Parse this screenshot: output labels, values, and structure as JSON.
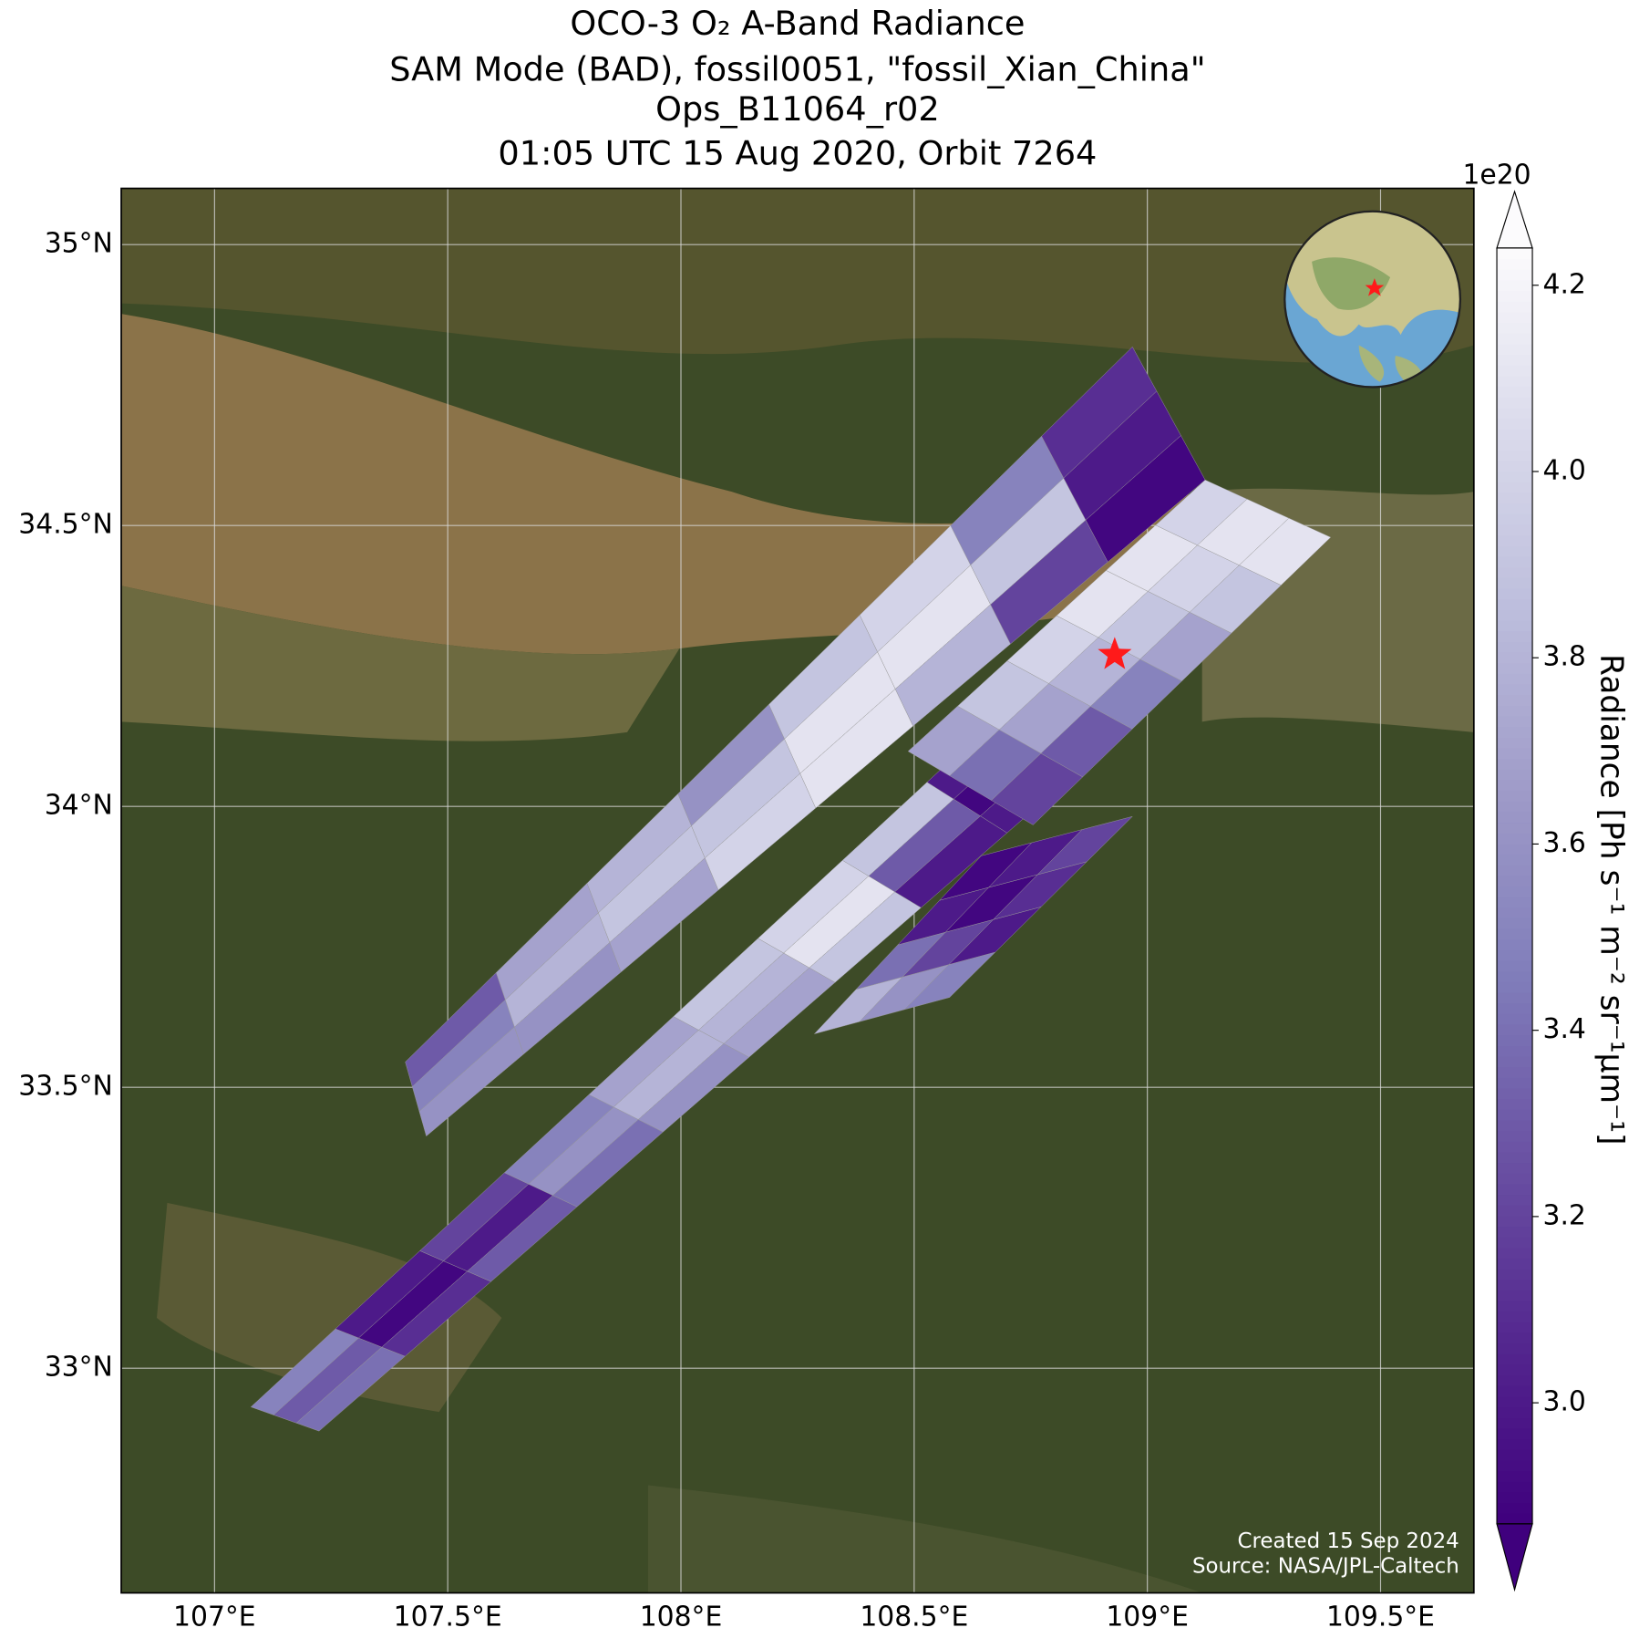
{
  "chart_data": {
    "type": "map",
    "title": [
      "OCO-3 O₂ A-Band Radiance",
      "SAM Mode (BAD), fossil0051, \"fossil_Xian_China\"",
      "Ops_B11064_r02",
      "01:05 UTC 15 Aug 2020, Orbit 7264"
    ],
    "xlim": [
      106.8,
      109.7
    ],
    "ylim": [
      32.6,
      35.1
    ],
    "xticks": [
      {
        "value": 107,
        "label": "107°E"
      },
      {
        "value": 107.5,
        "label": "107.5°E"
      },
      {
        "value": 108,
        "label": "108°E"
      },
      {
        "value": 108.5,
        "label": "108.5°E"
      },
      {
        "value": 109,
        "label": "109°E"
      },
      {
        "value": 109.5,
        "label": "109.5°E"
      }
    ],
    "yticks": [
      {
        "value": 33,
        "label": "33°N"
      },
      {
        "value": 33.5,
        "label": "33.5°N"
      },
      {
        "value": 34,
        "label": "34°N"
      },
      {
        "value": 34.5,
        "label": "34.5°N"
      },
      {
        "value": 35,
        "label": "35°N"
      }
    ],
    "grid": true,
    "colorbar": {
      "label": "Radiance [Ph s⁻¹ m⁻² sr⁻¹µm⁻¹]",
      "offset_label": "1e20",
      "lim": [
        2.87,
        4.24
      ],
      "ticks": [
        {
          "value": 3,
          "label": "3.0"
        },
        3.2,
        3.4,
        3.6,
        3.8,
        {
          "value": 4,
          "label": "4.0"
        },
        4.2
      ],
      "colormap": [
        "#3f007d",
        "#54278f",
        "#6a51a3",
        "#807dba",
        "#9e9ac8",
        "#bcbddc",
        "#dadaeb",
        "#fcfbfd"
      ],
      "extend": "both"
    },
    "swaths": [
      {
        "corners": [
          [
            107.409,
            33.545
          ],
          [
            107.454,
            33.413
          ],
          [
            109.124,
            34.581
          ],
          [
            108.968,
            34.818
          ]
        ],
        "values": [
          [
            3.3,
            3.5,
            3.6
          ],
          [
            3.7,
            3.8,
            3.6
          ],
          [
            3.8,
            3.9,
            3.7
          ],
          [
            3.6,
            3.9,
            4.0
          ],
          [
            3.9,
            4.1,
            4.1
          ],
          [
            4.0,
            4.1,
            3.8
          ],
          [
            3.5,
            3.9,
            3.2
          ],
          [
            3.1,
            3.0,
            2.9
          ]
        ]
      },
      {
        "corners": [
          [
            107.078,
            32.931
          ],
          [
            107.224,
            32.888
          ],
          [
            109.068,
            34.219
          ],
          [
            108.89,
            34.321
          ]
        ],
        "values": [
          [
            3.5,
            3.3,
            3.4
          ],
          [
            3.0,
            2.9,
            3.1
          ],
          [
            3.2,
            3.0,
            3.3
          ],
          [
            3.5,
            3.6,
            3.4
          ],
          [
            3.7,
            3.8,
            3.6
          ],
          [
            3.9,
            3.8,
            3.7
          ],
          [
            4.0,
            4.1,
            3.9
          ],
          [
            3.9,
            3.3,
            3.0
          ],
          [
            3.0,
            2.9,
            3.0
          ],
          [
            3.8,
            3.5,
            3.4
          ]
        ]
      },
      {
        "corners": [
          [
            108.487,
            34.098
          ],
          [
            108.755,
            33.967
          ],
          [
            109.393,
            34.479
          ],
          [
            109.124,
            34.581
          ]
        ],
        "values": [
          [
            3.7,
            3.4,
            3.2
          ],
          [
            3.9,
            3.7,
            3.3
          ],
          [
            4.0,
            3.8,
            3.5
          ],
          [
            4.1,
            3.9,
            3.7
          ],
          [
            4.1,
            4.0,
            3.9
          ],
          [
            4.0,
            4.1,
            4.1
          ]
        ]
      },
      {
        "corners": [
          [
            108.286,
            33.595
          ],
          [
            108.576,
            33.66
          ],
          [
            108.968,
            33.982
          ],
          [
            108.644,
            33.912
          ]
        ],
        "values": [
          [
            3.8,
            3.6,
            3.5
          ],
          [
            3.4,
            3.2,
            3.0
          ],
          [
            3.0,
            2.9,
            3.1
          ],
          [
            2.9,
            3.0,
            3.2
          ]
        ]
      }
    ],
    "target": {
      "lon": 108.93,
      "lat": 34.27,
      "color": "#ff1a1a"
    },
    "annotations": [
      "Created 15 Sep 2024",
      "Source: NASA/JPL-Caltech"
    ]
  }
}
